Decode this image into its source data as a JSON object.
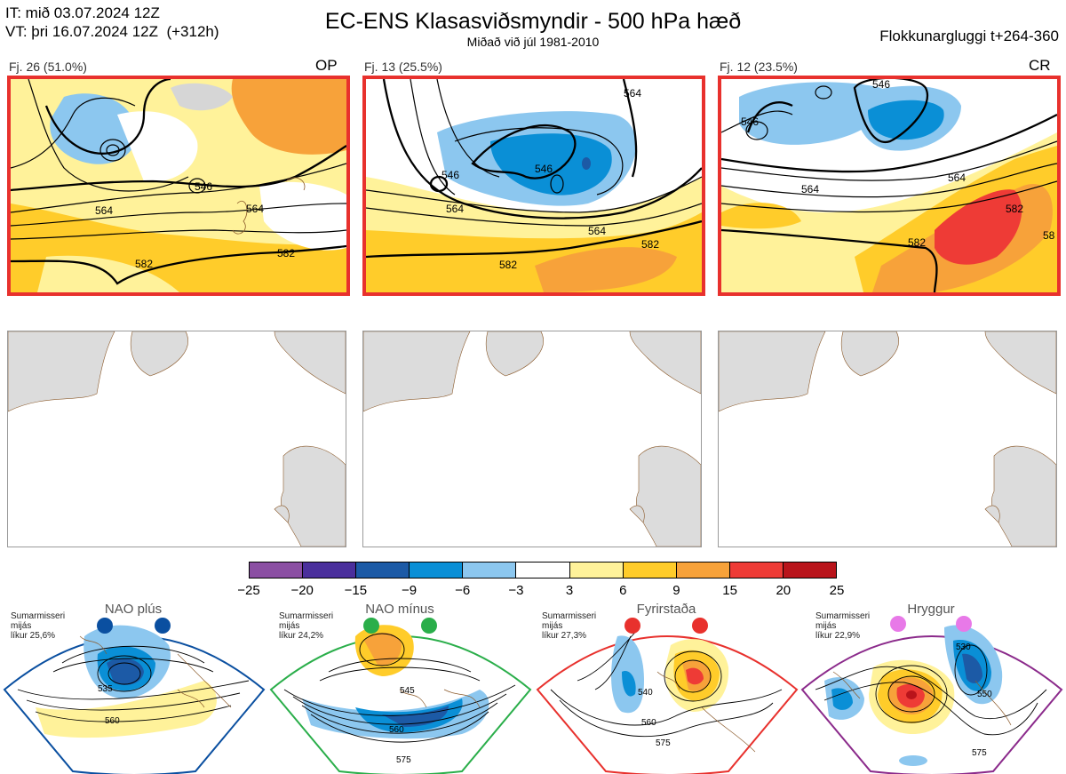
{
  "header": {
    "init_line": "IT: mið 03.07.2024 12Z",
    "valid_line": "VT: þri 16.07.2024 12Z  (+312h)",
    "title": "EC-ENS Klasasviðsmyndir - 500 hPa hæð",
    "subtitle": "Miðað við júl 1981-2010",
    "window": "Flokkunargluggi t+264-360"
  },
  "clusters": [
    {
      "label": "Fj. 26 (51.0%)",
      "code": "OP",
      "contours": [
        "546",
        "564",
        "564",
        "582",
        "582"
      ]
    },
    {
      "label": "Fj. 13 (25.5%)",
      "code": "",
      "contours": [
        "564",
        "546",
        "564",
        "546",
        "564",
        "582",
        "582"
      ]
    },
    {
      "label": "Fj. 12 (23.5%)",
      "code": "CR",
      "contours": [
        "546",
        "546",
        "564",
        "564",
        "582",
        "582",
        "58"
      ]
    }
  ],
  "colorbar": {
    "ticks": [
      "−25",
      "−20",
      "−15",
      "−9",
      "−6",
      "−3",
      "3",
      "6",
      "9",
      "15",
      "20",
      "25"
    ],
    "colors": [
      "#8b4fa3",
      "#4a2f9c",
      "#1c5aa6",
      "#0a8fd6",
      "#8cc7ef",
      "#ffffff",
      "#fff29a",
      "#ffcc2a",
      "#f7a23a",
      "#ee3b36",
      "#b9141b"
    ]
  },
  "regimes": [
    {
      "name": "NAO plús",
      "note": "Sumarmisseri\nmijás\nlíkur 25,6%",
      "color": "#0a4fa0",
      "contours": [
        "535",
        "560"
      ]
    },
    {
      "name": "NAO mínus",
      "note": "Sumarmisseri\nmijás\nlíkur 24,2%",
      "color": "#2aae4a",
      "contours": [
        "545",
        "560",
        "575"
      ]
    },
    {
      "name": "Fyrirstaða",
      "note": "Sumarmisseri\nmijás\nlíkur 27,3%",
      "color": "#e8312d",
      "contours": [
        "540",
        "560",
        "575"
      ]
    },
    {
      "name": "Hryggur",
      "note": "Sumarmisseri\nmijás\nlíkur 22,9%",
      "color": "#e879e8",
      "contours": [
        "530",
        "550",
        "575"
      ]
    }
  ]
}
